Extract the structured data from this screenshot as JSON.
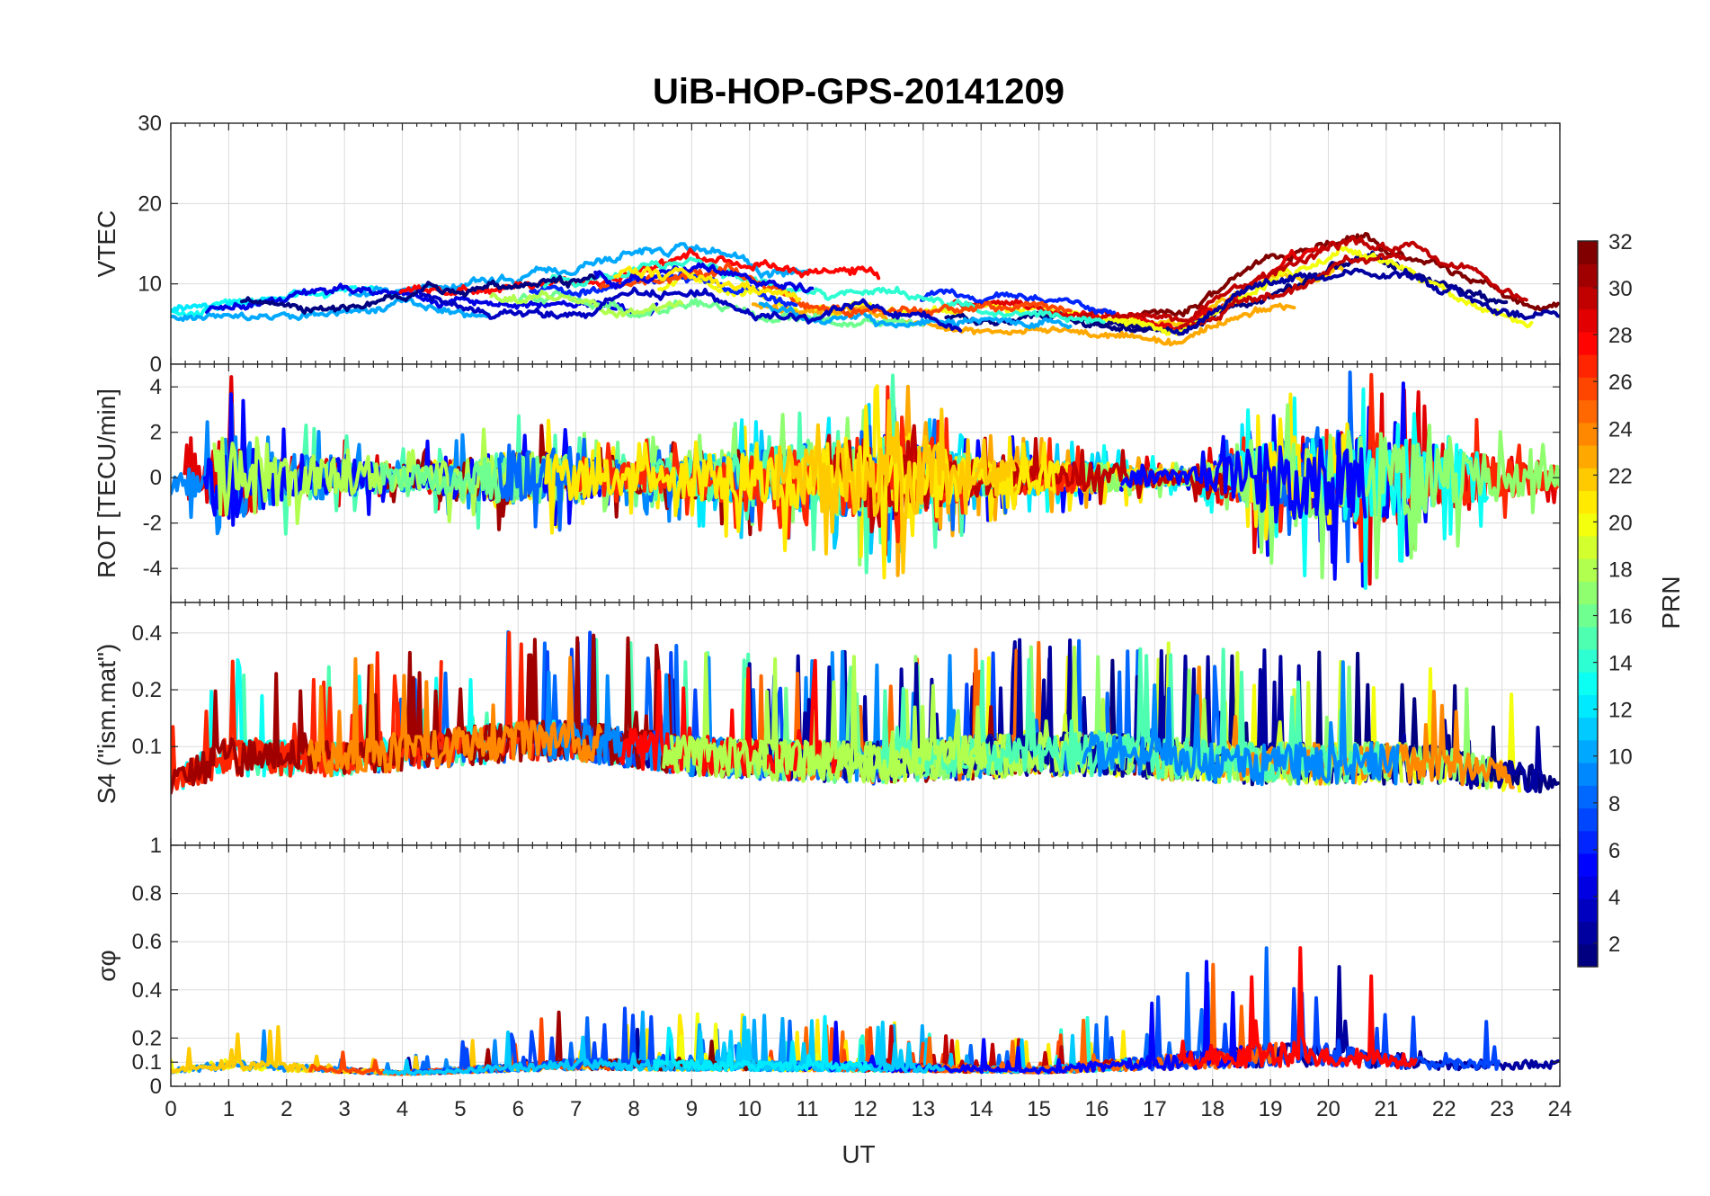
{
  "chart_data": {
    "type": "line",
    "title": "UiB-HOP-GPS-20141209",
    "xlabel": "UT",
    "x_ticks": [
      "0",
      "1",
      "2",
      "3",
      "4",
      "5",
      "6",
      "7",
      "8",
      "9",
      "10",
      "11",
      "12",
      "13",
      "14",
      "15",
      "16",
      "17",
      "18",
      "19",
      "20",
      "21",
      "22",
      "23",
      "24"
    ],
    "xlim": [
      0,
      24
    ],
    "grid": true,
    "colormap": "jet",
    "colorbar": {
      "label": "PRN",
      "range": [
        1,
        32
      ],
      "ticks": [
        "2",
        "4",
        "6",
        "8",
        "10",
        "12",
        "14",
        "16",
        "18",
        "20",
        "22",
        "24",
        "26",
        "28",
        "30",
        "32"
      ],
      "placement": "right"
    },
    "panels": [
      {
        "id": "vtec",
        "ylabel": "VTEC",
        "ylim": [
          0,
          30
        ],
        "y_ticks": [
          "0",
          "10",
          "20",
          "30"
        ],
        "series_envelope": [
          {
            "x": 0,
            "mean": 6.5,
            "spread": 2.0
          },
          {
            "x": 2,
            "mean": 7.5,
            "spread": 2.5
          },
          {
            "x": 4,
            "mean": 8.5,
            "spread": 3.0
          },
          {
            "x": 6,
            "mean": 9.0,
            "spread": 3.0
          },
          {
            "x": 8,
            "mean": 10.0,
            "spread": 4.0
          },
          {
            "x": 9,
            "mean": 11.0,
            "spread": 4.0
          },
          {
            "x": 11,
            "mean": 8.0,
            "spread": 3.5
          },
          {
            "x": 12,
            "mean": 8.5,
            "spread": 3.5
          },
          {
            "x": 14,
            "mean": 6.5,
            "spread": 2.5
          },
          {
            "x": 16,
            "mean": 5.5,
            "spread": 2.0
          },
          {
            "x": 17.5,
            "mean": 4.5,
            "spread": 2.0
          },
          {
            "x": 19,
            "mean": 10.0,
            "spread": 4.0
          },
          {
            "x": 20.5,
            "mean": 13.0,
            "spread": 4.0
          },
          {
            "x": 21.5,
            "mean": 12.0,
            "spread": 3.5
          },
          {
            "x": 23,
            "mean": 7.5,
            "spread": 2.5
          },
          {
            "x": 24,
            "mean": 6.5,
            "spread": 2.0
          }
        ]
      },
      {
        "id": "rot",
        "ylabel": "ROT [TECU/min]",
        "ylim": [
          -5.5,
          5
        ],
        "y_ticks": [
          "-4",
          "-2",
          "0",
          "2",
          "4"
        ],
        "series_envelope": [
          {
            "x": 0,
            "mean": 0,
            "spread": 0.8
          },
          {
            "x": 1,
            "mean": 0,
            "spread": 3.5
          },
          {
            "x": 2,
            "mean": 0,
            "spread": 2.0
          },
          {
            "x": 4,
            "mean": 0,
            "spread": 1.0
          },
          {
            "x": 6,
            "mean": 0,
            "spread": 2.2
          },
          {
            "x": 8,
            "mean": 0,
            "spread": 1.2
          },
          {
            "x": 10,
            "mean": 0,
            "spread": 2.2
          },
          {
            "x": 12.5,
            "mean": 0,
            "spread": 3.5
          },
          {
            "x": 14,
            "mean": 0,
            "spread": 1.5
          },
          {
            "x": 16,
            "mean": 0,
            "spread": 1.2
          },
          {
            "x": 17.5,
            "mean": 0,
            "spread": 0.5
          },
          {
            "x": 19,
            "mean": 0,
            "spread": 3.0
          },
          {
            "x": 20.5,
            "mean": 0,
            "spread": 4.0
          },
          {
            "x": 22,
            "mean": 0,
            "spread": 2.5
          },
          {
            "x": 24,
            "mean": 0,
            "spread": 1.0
          }
        ]
      },
      {
        "id": "s4",
        "ylabel": "S4 (\"ism.mat\")",
        "ylim": [
          0.03,
          0.58
        ],
        "y_ticks": [
          "0.1",
          "0.2",
          "0.4"
        ],
        "y_scale": "log",
        "series_envelope": [
          {
            "x": 0,
            "mean": 0.08,
            "spread": 0.05
          },
          {
            "x": 1,
            "mean": 0.1,
            "spread": 0.12
          },
          {
            "x": 3,
            "mean": 0.1,
            "spread": 0.1
          },
          {
            "x": 6,
            "mean": 0.12,
            "spread": 0.15
          },
          {
            "x": 7,
            "mean": 0.12,
            "spread": 0.15
          },
          {
            "x": 9,
            "mean": 0.1,
            "spread": 0.12
          },
          {
            "x": 12,
            "mean": 0.09,
            "spread": 0.12
          },
          {
            "x": 15,
            "mean": 0.1,
            "spread": 0.14
          },
          {
            "x": 16,
            "mean": 0.1,
            "spread": 0.14
          },
          {
            "x": 18.5,
            "mean": 0.09,
            "spread": 0.12
          },
          {
            "x": 21.5,
            "mean": 0.09,
            "spread": 0.12
          },
          {
            "x": 24,
            "mean": 0.08,
            "spread": 0.05
          }
        ]
      },
      {
        "id": "sigma",
        "ylabel": "σφ",
        "ylim": [
          0,
          1
        ],
        "y_ticks": [
          "0",
          "0.1",
          "0.2",
          "0.4",
          "0.6",
          "0.8",
          "1"
        ],
        "series_envelope": [
          {
            "x": 0,
            "mean": 0.08,
            "spread": 0.04
          },
          {
            "x": 1,
            "mean": 0.1,
            "spread": 0.12
          },
          {
            "x": 4,
            "mean": 0.07,
            "spread": 0.03
          },
          {
            "x": 7,
            "mean": 0.1,
            "spread": 0.12
          },
          {
            "x": 12,
            "mean": 0.09,
            "spread": 0.1
          },
          {
            "x": 15,
            "mean": 0.08,
            "spread": 0.06
          },
          {
            "x": 19.5,
            "mean": 0.12,
            "spread": 0.3
          },
          {
            "x": 22,
            "mean": 0.1,
            "spread": 0.12
          },
          {
            "x": 24,
            "mean": 0.1,
            "spread": 0.1
          }
        ]
      }
    ]
  }
}
